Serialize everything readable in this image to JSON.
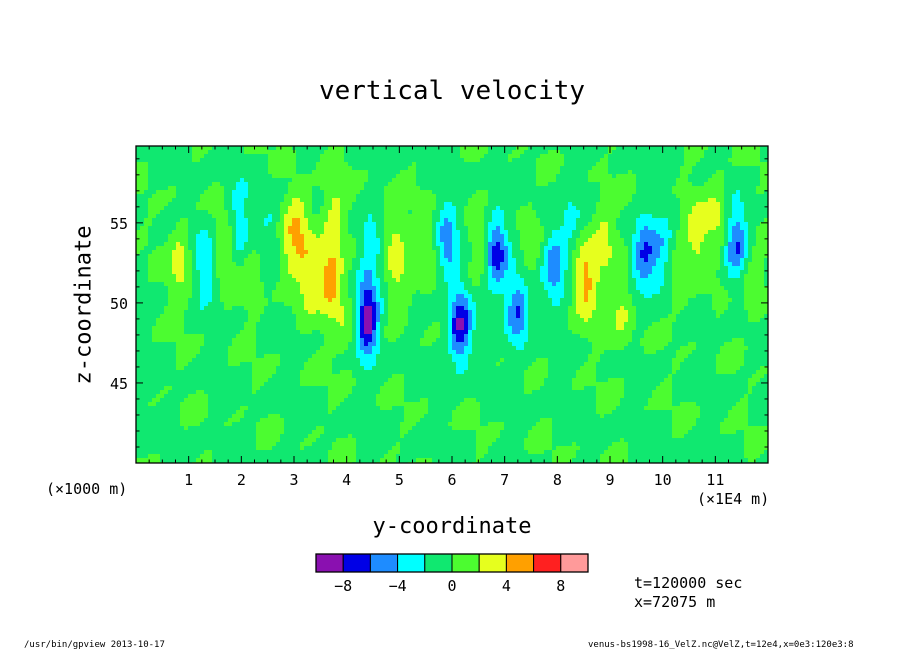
{
  "chart_data": {
    "type": "heatmap",
    "title": "vertical velocity",
    "xlabel": "y-coordinate",
    "ylabel": "z-coordinate",
    "x_unit_left": "(×1000 m)",
    "x_unit_right": "(×1E4 m)",
    "xlim": [
      0,
      12
    ],
    "ylim": [
      40,
      59.8
    ],
    "x_ticks": [
      "1",
      "2",
      "3",
      "4",
      "5",
      "6",
      "7",
      "8",
      "9",
      "10",
      "11"
    ],
    "y_ticks": [
      "45",
      "50",
      "55"
    ],
    "colorbar": {
      "levels": [
        -10,
        -8,
        -6,
        -4,
        -2,
        0,
        2,
        4,
        6,
        8,
        10
      ],
      "tick_labels": [
        "-8",
        "-4",
        "0",
        "4",
        "8"
      ],
      "colors": [
        "#8a10b0",
        "#0000e6",
        "#1e8cff",
        "#00ffff",
        "#10e870",
        "#4cfc30",
        "#e6ff1e",
        "#ffa000",
        "#ff2020",
        "#ff9a9a"
      ]
    },
    "field": {
      "background_value": -0.3,
      "features": [
        {
          "y": 0.85,
          "z": 52.5,
          "amp": 3.2
        },
        {
          "y": 1.3,
          "z": 52.5,
          "amp": -3.2
        },
        {
          "y": 1.72,
          "z": 53.5,
          "amp": 2.6
        },
        {
          "y": 1.95,
          "z": 54.8,
          "amp": -3.6
        },
        {
          "y": 2.2,
          "z": 52.0,
          "amp": 2.2
        },
        {
          "y": 2.55,
          "z": 54.5,
          "amp": -2.2
        },
        {
          "y": 2.9,
          "z": 53.5,
          "amp": 2.6
        },
        {
          "y": 3.1,
          "z": 55.0,
          "amp": 3.2
        },
        {
          "y": 3.3,
          "z": 51.8,
          "amp": 3.5
        },
        {
          "y": 3.7,
          "z": 51.5,
          "amp": 5.8
        },
        {
          "y": 3.75,
          "z": 55.8,
          "amp": 2.7
        },
        {
          "y": 4.4,
          "z": 49.0,
          "amp": -9.2
        },
        {
          "y": 4.45,
          "z": 53.5,
          "amp": -3.0
        },
        {
          "y": 4.0,
          "z": 48.5,
          "amp": 2.0
        },
        {
          "y": 4.9,
          "z": 54.5,
          "amp": 2.6
        },
        {
          "y": 5.0,
          "z": 51.5,
          "amp": 2.6
        },
        {
          "y": 5.6,
          "z": 53.0,
          "amp": 1.8
        },
        {
          "y": 5.9,
          "z": 53.8,
          "amp": -5.0
        },
        {
          "y": 6.15,
          "z": 48.5,
          "amp": -7.8
        },
        {
          "y": 6.5,
          "z": 53.5,
          "amp": 2.2
        },
        {
          "y": 6.85,
          "z": 53.2,
          "amp": -7.0
        },
        {
          "y": 7.25,
          "z": 49.5,
          "amp": -6.0
        },
        {
          "y": 7.5,
          "z": 53.5,
          "amp": 2.2
        },
        {
          "y": 7.95,
          "z": 52.3,
          "amp": -5.0
        },
        {
          "y": 8.25,
          "z": 55.2,
          "amp": -2.2
        },
        {
          "y": 8.55,
          "z": 51.5,
          "amp": 5.0
        },
        {
          "y": 8.9,
          "z": 54.0,
          "amp": 3.2
        },
        {
          "y": 9.2,
          "z": 49.5,
          "amp": 2.8
        },
        {
          "y": 9.65,
          "z": 53.0,
          "amp": -6.2
        },
        {
          "y": 10.0,
          "z": 53.0,
          "amp": -3.0
        },
        {
          "y": 10.3,
          "z": 52.0,
          "amp": 2.4
        },
        {
          "y": 10.65,
          "z": 54.2,
          "amp": 3.0
        },
        {
          "y": 11.05,
          "z": 55.5,
          "amp": 2.8
        },
        {
          "y": 11.4,
          "z": 53.8,
          "amp": -5.6
        },
        {
          "y": 11.7,
          "z": 51.5,
          "amp": 2.2
        }
      ]
    }
  },
  "info": {
    "time": "t=120000 sec",
    "xpos": "x=72075 m"
  },
  "footer": {
    "left": "/usr/bin/gpview   2013-10-17",
    "right": "venus-bs1998-16_VelZ.nc@VelZ,t=12e4,x=0e3:120e3:8"
  }
}
